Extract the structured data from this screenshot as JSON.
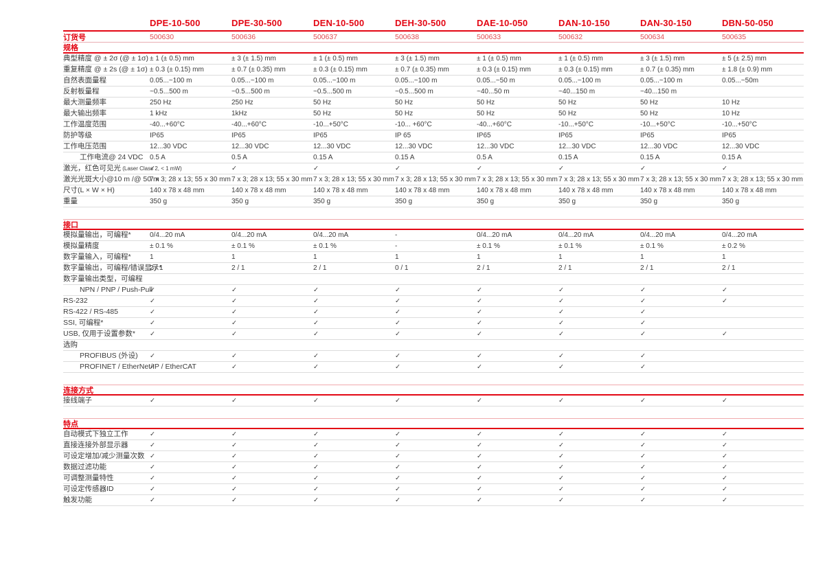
{
  "colors": {
    "accent_red": "#e30613",
    "text": "#3b3b3b",
    "row_separator": "#dcdcdc",
    "light_red_line": "#f0a9ad"
  },
  "check_glyph": "✓",
  "table": {
    "products": [
      "DPE-10-500",
      "DPE-30-500",
      "DEN-10-500",
      "DEH-30-500",
      "DAE-10-050",
      "DAN-10-150",
      "DAN-30-150",
      "DBN-50-050"
    ],
    "order_label": "订货号",
    "order_numbers": [
      "500630",
      "500636",
      "500637",
      "500638",
      "500633",
      "500632",
      "500634",
      "500635"
    ],
    "sections": [
      {
        "title": "规格",
        "rows": [
          {
            "label": "典型精度 @ ± 2σ (@ ± 1σ)",
            "values": [
              "± 1 (± 0.5) mm",
              "± 3 (± 1.5) mm",
              "± 1 (± 0.5) mm",
              "± 3 (± 1.5) mm",
              "± 1 (± 0.5) mm",
              "± 1 (± 0.5) mm",
              "± 3 (± 1.5) mm",
              "± 5 (± 2.5) mm"
            ]
          },
          {
            "label": "重复精度 @ ± 2s (@ ± 1σ)",
            "values": [
              "± 0.3 (± 0.15) mm",
              "± 0.7 (± 0.35) mm",
              "± 0.3 (± 0.15) mm",
              "± 0.7 (± 0.35) mm",
              "± 0.3 (± 0.15) mm",
              "± 0.3 (± 0.15) mm",
              "± 0.7 (± 0.35) mm",
              "± 1.8 (± 0.9) mm"
            ]
          },
          {
            "label": "自然表面量程",
            "values": [
              "0.05...~100 m",
              "0.05...~100 m",
              "0.05...~100 m",
              "0.05...~100 m",
              "0.05...~50 m",
              "0.05...~100 m",
              "0.05...~100 m",
              "0.05...~50m"
            ]
          },
          {
            "label": "反射板量程",
            "values": [
              "~0.5...500 m",
              "~0.5...500 m",
              "~0.5...500 m",
              "~0.5...500 m",
              "~40...50 m",
              "~40...150 m",
              "~40...150 m",
              ""
            ]
          },
          {
            "label": "最大测量频率",
            "values": [
              "250 Hz",
              "250 Hz",
              "50 Hz",
              "50 Hz",
              "50 Hz",
              "50 Hz",
              "50 Hz",
              "10 Hz"
            ]
          },
          {
            "label": "最大输出频率",
            "values": [
              "1 kHz",
              "1kHz",
              "50 Hz",
              "50 Hz",
              "50 Hz",
              "50 Hz",
              "50 Hz",
              "10 Hz"
            ]
          },
          {
            "label": "工作温度范围",
            "values": [
              "-40...+60°C",
              "-40...+60°C",
              "-10...+50°C",
              "-10... +60°C",
              "-40...+60°C",
              "-10...+50°C",
              "-10...+50°C",
              "-10...+50°C"
            ]
          },
          {
            "label": "防护等级",
            "values": [
              "IP65",
              "IP65",
              "IP65",
              "IP 65",
              "IP65",
              "IP65",
              "IP65",
              "IP65"
            ]
          },
          {
            "label": "工作电压范围",
            "values": [
              "12...30 VDC",
              "12...30 VDC",
              "12...30 VDC",
              "12...30 VDC",
              "12...30 VDC",
              "12...30 VDC",
              "12...30 VDC",
              "12...30 VDC"
            ]
          },
          {
            "label": "工作电流@ 24 VDC",
            "indent": true,
            "values": [
              "0.5 A",
              "0.5 A",
              "0.15 A",
              "0.15 A",
              "0.5 A",
              "0.15 A",
              "0.15 A",
              "0.15 A"
            ]
          },
          {
            "label": "激光，红色可见光",
            "note": "(Laser Class 2, < 1 mW)",
            "values": [
              "✓",
              "✓",
              "✓",
              "✓",
              "✓",
              "✓",
              "✓",
              "✓"
            ]
          },
          {
            "label": "激光光斑大小@10 m /@ 50 m",
            "values": [
              "7 x 3; 28 x 13; 55 x 30 mm",
              "7 x 3; 28 x 13; 55 x 30 mm",
              "7 x 3; 28 x 13; 55 x 30 mm",
              "7 x 3; 28 x 13; 55 x 30 mm",
              "7 x 3; 28 x 13; 55 x 30 mm",
              "7 x 3; 28 x 13; 55 x 30 mm",
              "7 x 3; 28 x 13; 55 x 30 mm",
              "7 x 3; 28 x 13; 55 x 30 mm"
            ]
          },
          {
            "label": "尺寸(L × W × H)",
            "values": [
              "140 x 78 x 48 mm",
              "140 x 78 x 48 mm",
              "140 x 78 x 48 mm",
              "140 x 78 x 48 mm",
              "140 x 78 x 48 mm",
              "140 x 78 x 48 mm",
              "140 x 78 x 48 mm",
              "140 x 78 x 48 mm"
            ]
          },
          {
            "label": "重量",
            "values": [
              "350 g",
              "350 g",
              "350 g",
              "350 g",
              "350 g",
              "350 g",
              "350 g",
              "350 g"
            ]
          }
        ]
      },
      {
        "title": "接口",
        "rows": [
          {
            "label": "模拟量输出，可编程*",
            "values": [
              "0/4...20 mA",
              "0/4...20 mA",
              "0/4...20 mA",
              "-",
              "0/4...20 mA",
              "0/4...20 mA",
              "0/4...20 mA",
              "0/4...20 mA"
            ]
          },
          {
            "label": "模拟量精度",
            "values": [
              "± 0.1 %",
              "± 0.1 %",
              "± 0.1 %",
              "-",
              "± 0.1 %",
              "± 0.1 %",
              "± 0.1 %",
              "± 0.2 %"
            ]
          },
          {
            "label": "数字量输入，可编程*",
            "values": [
              "1",
              "1",
              "1",
              "1",
              "1",
              "1",
              "1",
              "1"
            ]
          },
          {
            "label": "数字量输出，可编程/错误显示*",
            "values": [
              "2 / 1",
              "2 / 1",
              "2 / 1",
              "0 / 1",
              "2 / 1",
              "2 / 1",
              "2 / 1",
              "2 / 1"
            ]
          },
          {
            "label": "数字量输出类型，可编程",
            "group": true,
            "values": [
              "",
              "",
              "",
              "",
              "",
              "",
              "",
              ""
            ]
          },
          {
            "label": "NPN / PNP / Push-Pull",
            "indent": true,
            "values": [
              "✓",
              "✓",
              "✓",
              "✓",
              "✓",
              "✓",
              "✓",
              "✓"
            ]
          },
          {
            "label": "RS-232",
            "values": [
              "✓",
              "✓",
              "✓",
              "✓",
              "✓",
              "✓",
              "✓",
              "✓"
            ]
          },
          {
            "label": "RS-422 / RS-485",
            "values": [
              "✓",
              "✓",
              "✓",
              "✓",
              "✓",
              "✓",
              "✓",
              ""
            ]
          },
          {
            "label": "SSI, 可编程*",
            "values": [
              "✓",
              "✓",
              "✓",
              "✓",
              "✓",
              "✓",
              "✓",
              ""
            ]
          },
          {
            "label": "USB, 仅用于设置参数*",
            "values": [
              "✓",
              "✓",
              "✓",
              "✓",
              "✓",
              "✓",
              "✓",
              "✓"
            ]
          },
          {
            "label": "选购",
            "group": true,
            "values": [
              "",
              "",
              "",
              "",
              "",
              "",
              "",
              ""
            ]
          },
          {
            "label": "PROFIBUS (外设)",
            "indent": true,
            "values": [
              "✓",
              "✓",
              "✓",
              "✓",
              "✓",
              "✓",
              "✓",
              ""
            ]
          },
          {
            "label": "PROFINET / EtherNet/IP / EtherCAT",
            "indent": true,
            "values": [
              "✓",
              "✓",
              "✓",
              "✓",
              "✓",
              "✓",
              "✓",
              ""
            ]
          }
        ]
      },
      {
        "title": "连接方式",
        "rows": [
          {
            "label": "接线端子",
            "values": [
              "✓",
              "✓",
              "✓",
              "✓",
              "✓",
              "✓",
              "✓",
              "✓"
            ]
          }
        ]
      },
      {
        "title": "特点",
        "rows": [
          {
            "label": "自动模式下独立工作",
            "values": [
              "✓",
              "✓",
              "✓",
              "✓",
              "✓",
              "✓",
              "✓",
              "✓"
            ]
          },
          {
            "label": "直接连接外部显示器",
            "values": [
              "✓",
              "✓",
              "✓",
              "✓",
              "✓",
              "✓",
              "✓",
              "✓"
            ]
          },
          {
            "label": "可设定增加/减少测量次数",
            "values": [
              "✓",
              "✓",
              "✓",
              "✓",
              "✓",
              "✓",
              "✓",
              "✓"
            ]
          },
          {
            "label": "数据过滤功能",
            "values": [
              "✓",
              "✓",
              "✓",
              "✓",
              "✓",
              "✓",
              "✓",
              "✓"
            ]
          },
          {
            "label": "可调整测量特性",
            "values": [
              "✓",
              "✓",
              "✓",
              "✓",
              "✓",
              "✓",
              "✓",
              "✓"
            ]
          },
          {
            "label": "可设定传感器ID",
            "values": [
              "✓",
              "✓",
              "✓",
              "✓",
              "✓",
              "✓",
              "✓",
              "✓"
            ]
          },
          {
            "label": "触发功能",
            "values": [
              "✓",
              "✓",
              "✓",
              "✓",
              "✓",
              "✓",
              "✓",
              "✓"
            ]
          }
        ]
      }
    ]
  }
}
